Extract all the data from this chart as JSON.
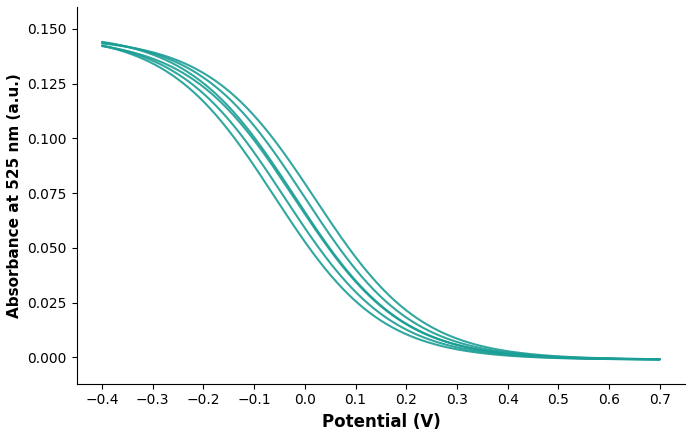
{
  "line_color": "#1a9e96",
  "line_width": 1.5,
  "xlabel": "Potential (V)",
  "ylabel": "Absorbance at 525 nm (a.u.)",
  "xlim": [
    -0.45,
    0.75
  ],
  "ylim": [
    -0.012,
    0.16
  ],
  "xticks": [
    -0.4,
    -0.3,
    -0.2,
    -0.1,
    0.0,
    0.1,
    0.2,
    0.3,
    0.4,
    0.5,
    0.6,
    0.7
  ],
  "yticks": [
    0.0,
    0.025,
    0.05,
    0.075,
    0.1,
    0.125,
    0.15
  ],
  "background_color": "#ffffff",
  "xlabel_fontsize": 12,
  "ylabel_fontsize": 11,
  "tick_fontsize": 10
}
